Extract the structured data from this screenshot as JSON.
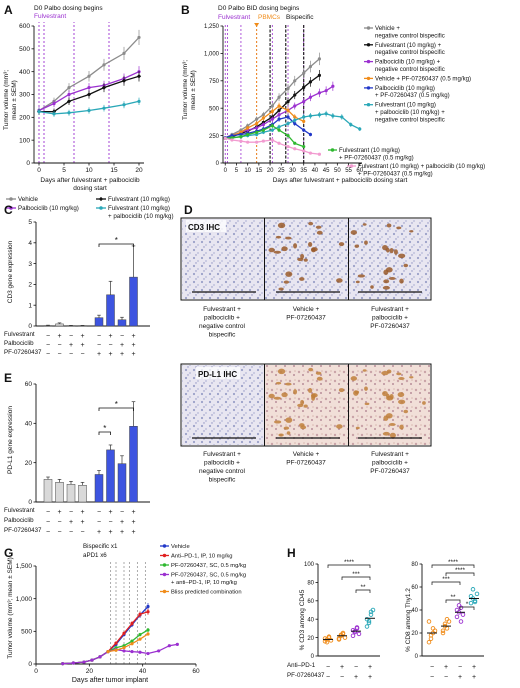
{
  "panels": {
    "A": {
      "letter": "A",
      "header1": "D0 Palbo dosing begins",
      "header2": "Fulvestrant",
      "ylabel": [
        "Tumor volume (mm³;",
        "mean ± SEM)"
      ],
      "xlabel": [
        "Days after fulvestrant + palbociclib",
        "dosing start"
      ],
      "legend": [
        "Vehicle",
        "Palbociclib (10 mg/kg)",
        "Fulvestrant (10 mg/kg)",
        "Fulvestrant (10 mg/kg)",
        "+ palbociclib (10 mg/kg)"
      ]
    },
    "B": {
      "letter": "B",
      "header1": "D0 Palbo BID dosing begins",
      "header_fulv": "Fulvestrant",
      "header_pbmc": "PBMCs",
      "header_bisp": "Bispecific",
      "ylabel": [
        "Tumor volume (mm³;",
        "mean ± SEM)"
      ],
      "xlabel": "Days after fulvestrant + palbociclib dosing start",
      "legend": [
        "Vehicle +",
        "negative control bispecific",
        "Fulvestrant (10 mg/kg) +",
        "negative control bispecific",
        "Palbociclib (10 mg/kg) +",
        "negative control bispecific",
        "Vehicle + PF-07260437 (0.5 mg/kg)",
        "Palbociclib (10 mg/kg)",
        "+ PF-07260437 (0.5 mg/kg)",
        "Fulvestrant (10 mg/kg)",
        "+ palbociclib (10 mg/kg) +",
        "negative control bispecific",
        "Fulvestrant (10 mg/kg)",
        "+ PF-07260437 (0.5 mg/kg)",
        "Fulvestrant (10 mg/kg) + palbociclib (10 mg/kg)",
        "+ PF-07260437 (0.5 mg/kg)"
      ]
    },
    "C": {
      "letter": "C",
      "ylabel": "CD3 gene expression",
      "row_labels": [
        "Fulvestrant",
        "Palbociclib",
        "PF-07260437"
      ],
      "signs": [
        [
          "−",
          "+",
          "−",
          "+",
          "−",
          "+",
          "−",
          "+"
        ],
        [
          "−",
          "−",
          "+",
          "+",
          "−",
          "−",
          "+",
          "+"
        ],
        [
          "−",
          "−",
          "−",
          "−",
          "+",
          "+",
          "+",
          "+"
        ]
      ],
      "sig": "*"
    },
    "D": {
      "letter": "D",
      "title": "CD3 IHC",
      "captions": [
        [
          "Fulvestrant +",
          "palbociclib +",
          "negative control",
          "bispecific"
        ],
        [
          "Vehicle +",
          "PF-07260437"
        ],
        [
          "Fulvestrant +",
          "palbociclib +",
          "PF-07260437"
        ]
      ]
    },
    "E": {
      "letter": "E",
      "ylabel": "PD-L1 gene expression",
      "row_labels": [
        "Fulvestrant",
        "Palbociclib",
        "PF-07260437"
      ],
      "signs": [
        [
          "−",
          "+",
          "−",
          "+",
          "−",
          "+",
          "−",
          "+"
        ],
        [
          "−",
          "−",
          "+",
          "+",
          "−",
          "−",
          "+",
          "+"
        ],
        [
          "−",
          "−",
          "−",
          "−",
          "+",
          "+",
          "+",
          "+"
        ]
      ],
      "sig": "*"
    },
    "F": {
      "letter": "F",
      "title": "PD-L1 IHC",
      "captions": [
        [
          "Fulvestrant +",
          "palbociclib +",
          "negative control",
          "bispecific"
        ],
        [
          "Vehicle +",
          "PF-07260437"
        ],
        [
          "Fulvestrant +",
          "palbociclib +",
          "PF-07260437"
        ]
      ]
    },
    "G": {
      "letter": "G",
      "header1": "Bispecific x1",
      "header2": "aPD1 x6",
      "ylabel": [
        "Tumor volume (mm³; mean ± SEM)"
      ],
      "xlabel": "Days after tumor implant",
      "legend": [
        "Vehicle",
        "Anti–PD-1, IP, 10 mg/kg",
        "PF-07260437, SC, 0.5 mg/kg",
        "PF-07260437, SC, 0.5 mg/kg",
        "+ anti–PD-1, IP, 10 mg/kg",
        "Bliss predicted combination"
      ]
    },
    "H": {
      "letter": "H",
      "ylabel_left": "% CD3 among CD45",
      "ylabel_right": "% CD8 among Thy1.2",
      "row_labels": [
        "Anti–PD-1",
        "PF-07260437"
      ],
      "signs": [
        [
          "−",
          "+",
          "−",
          "+"
        ],
        [
          "−",
          "−",
          "+",
          "+"
        ]
      ],
      "sig_left": [
        "****",
        "***",
        "**"
      ],
      "sig_right": [
        "****",
        "****",
        "***",
        "**",
        "*"
      ]
    }
  },
  "chart_data": [
    {
      "panel": "A",
      "type": "line",
      "x": [
        0,
        3,
        6,
        10,
        13,
        17,
        20
      ],
      "xlim": [
        -1,
        21
      ],
      "ylim": [
        0,
        600
      ],
      "yticks": [
        0,
        100,
        200,
        300,
        400,
        500,
        600
      ],
      "xticks": [
        0,
        5,
        10,
        15,
        20
      ],
      "vlines": [
        0,
        1,
        7,
        14
      ],
      "series": [
        {
          "color": "#8c8c8c",
          "marker": "circle",
          "values": [
            230,
            270,
            330,
            380,
            430,
            480,
            550
          ]
        },
        {
          "color": "#9b30d0",
          "marker": "circle",
          "values": [
            230,
            260,
            300,
            330,
            340,
            370,
            400
          ]
        },
        {
          "color": "#111111",
          "marker": "diamond",
          "values": [
            225,
            225,
            270,
            300,
            330,
            360,
            380
          ]
        },
        {
          "color": "#2aa8b8",
          "marker": "circle",
          "values": [
            225,
            215,
            220,
            230,
            240,
            255,
            270
          ]
        }
      ]
    },
    {
      "panel": "B",
      "type": "line",
      "xlim": [
        -1,
        61
      ],
      "ylim": [
        0,
        1250
      ],
      "yticks": [
        0,
        250,
        500,
        750,
        1000,
        1250
      ],
      "xticks": [
        0,
        5,
        10,
        15,
        20,
        25,
        30,
        35,
        40,
        45,
        50,
        55,
        60
      ],
      "vlines_purple": [
        0,
        1,
        7,
        14,
        21,
        28,
        35
      ],
      "vline_orange": 14,
      "vlines_black": [
        20,
        27,
        35
      ],
      "series": [
        {
          "color": "#8c8c8c",
          "x": [
            0,
            3,
            7,
            10,
            14,
            17,
            21,
            24,
            28,
            31,
            35,
            38,
            42
          ],
          "values": [
            230,
            260,
            300,
            340,
            400,
            440,
            520,
            600,
            680,
            750,
            820,
            880,
            950
          ]
        },
        {
          "color": "#111111",
          "x": [
            0,
            3,
            7,
            10,
            14,
            17,
            21,
            24,
            28,
            31,
            35,
            38,
            42
          ],
          "values": [
            225,
            240,
            270,
            290,
            330,
            370,
            420,
            480,
            560,
            620,
            690,
            740,
            800
          ]
        },
        {
          "color": "#9b30d0",
          "x": [
            0,
            3,
            7,
            10,
            14,
            17,
            21,
            24,
            28,
            31,
            35,
            38,
            42,
            45,
            48
          ],
          "values": [
            230,
            250,
            280,
            300,
            320,
            350,
            400,
            440,
            480,
            520,
            560,
            600,
            640,
            660,
            700
          ]
        },
        {
          "color": "#f08c1a",
          "x": [
            0,
            3,
            7,
            10,
            14,
            17,
            21,
            24,
            28,
            31,
            35
          ],
          "values": [
            225,
            250,
            280,
            320,
            360,
            410,
            470,
            520,
            480,
            420,
            380
          ]
        },
        {
          "color": "#2238c8",
          "x": [
            0,
            3,
            7,
            10,
            14,
            17,
            21,
            24,
            28,
            31,
            35,
            38
          ],
          "values": [
            230,
            250,
            260,
            270,
            290,
            310,
            350,
            400,
            420,
            360,
            300,
            260
          ]
        },
        {
          "color": "#2aa8b8",
          "x": [
            0,
            3,
            7,
            10,
            14,
            17,
            21,
            24,
            28,
            31,
            35,
            38,
            42,
            45,
            48,
            52,
            56,
            60
          ],
          "values": [
            225,
            230,
            240,
            250,
            260,
            280,
            300,
            330,
            360,
            390,
            420,
            430,
            440,
            450,
            430,
            420,
            350,
            310
          ]
        },
        {
          "color": "#2fb830",
          "x": [
            0,
            3,
            7,
            10,
            14,
            17,
            21,
            24,
            28,
            31,
            35
          ],
          "values": [
            225,
            230,
            240,
            260,
            280,
            300,
            340,
            300,
            250,
            180,
            150
          ]
        },
        {
          "color": "#f29bd0",
          "x": [
            0,
            3,
            7,
            10,
            14,
            17,
            21,
            24,
            28,
            31,
            35,
            38,
            42
          ],
          "values": [
            225,
            210,
            200,
            190,
            190,
            200,
            210,
            180,
            150,
            130,
            110,
            90,
            80
          ]
        }
      ]
    },
    {
      "panel": "C",
      "type": "bar",
      "ylim": [
        0,
        5
      ],
      "yticks": [
        0,
        1,
        2,
        3,
        4,
        5
      ],
      "groups": [
        {
          "color": "#d9d9d9",
          "values": [
            0.02,
            0.1,
            0.02,
            0.02
          ],
          "errors": [
            0.02,
            0.05,
            0.01,
            0.01
          ]
        },
        {
          "color": "#3d54e0",
          "values": [
            0.4,
            1.5,
            0.3,
            2.35
          ],
          "errors": [
            0.12,
            0.65,
            0.12,
            1.5
          ]
        }
      ]
    },
    {
      "panel": "E",
      "type": "bar",
      "ylim": [
        0,
        60
      ],
      "yticks": [
        0,
        20,
        40,
        60
      ],
      "groups": [
        {
          "color": "#d9d9d9",
          "values": [
            11.5,
            10,
            9,
            8.5
          ],
          "errors": [
            1.2,
            1.5,
            1.5,
            1.5
          ]
        },
        {
          "color": "#3d54e0",
          "values": [
            14,
            26.5,
            19.5,
            38.5
          ],
          "errors": [
            2,
            2.5,
            4,
            12.5
          ]
        }
      ]
    },
    {
      "panel": "G",
      "type": "line",
      "xlim": [
        0,
        60
      ],
      "ylim": [
        0,
        1500
      ],
      "yticks": [
        0,
        500,
        1000,
        1500
      ],
      "xticks": [
        0,
        20,
        40,
        60
      ],
      "vlines": [
        28,
        30,
        33,
        35,
        38,
        41
      ],
      "series": [
        {
          "color": "#2238c8",
          "x": [
            10,
            14,
            18,
            21,
            24,
            27,
            30,
            33,
            36,
            39,
            42
          ],
          "values": [
            5,
            15,
            30,
            60,
            110,
            190,
            300,
            450,
            600,
            750,
            880
          ]
        },
        {
          "color": "#e02020",
          "x": [
            10,
            14,
            18,
            21,
            24,
            27,
            30,
            33,
            36,
            39,
            42
          ],
          "values": [
            5,
            15,
            30,
            60,
            110,
            190,
            320,
            470,
            620,
            760,
            800
          ]
        },
        {
          "color": "#2fb830",
          "x": [
            10,
            14,
            18,
            21,
            24,
            27,
            30,
            33,
            36,
            39,
            42
          ],
          "values": [
            5,
            15,
            30,
            60,
            110,
            190,
            250,
            280,
            350,
            450,
            520
          ]
        },
        {
          "color": "#9b30d0",
          "x": [
            10,
            14,
            18,
            21,
            24,
            27,
            30,
            33,
            36,
            39,
            42,
            46,
            50,
            53
          ],
          "values": [
            5,
            15,
            30,
            60,
            110,
            190,
            220,
            200,
            190,
            180,
            160,
            200,
            280,
            300
          ]
        },
        {
          "color": "#f08c1a",
          "x": [
            27,
            30,
            33,
            36,
            39,
            42
          ],
          "values": [
            190,
            210,
            250,
            310,
            380,
            460
          ]
        }
      ]
    },
    {
      "panel": "H",
      "type": "scatter",
      "left": {
        "ylim": [
          0,
          100
        ],
        "yticks": [
          0,
          20,
          40,
          60,
          80,
          100
        ],
        "colors": [
          "#f08c1a",
          "#f08c1a",
          "#9b30d0",
          "#2aa8b8"
        ],
        "points": [
          [
            16,
            18,
            20,
            17,
            19,
            15,
            21
          ],
          [
            19,
            22,
            24,
            20,
            18,
            23,
            25
          ],
          [
            22,
            26,
            30,
            24,
            28,
            27,
            31
          ],
          [
            32,
            38,
            45,
            50,
            40,
            36,
            48
          ]
        ],
        "means": [
          18,
          22,
          27,
          41
        ]
      },
      "right": {
        "ylim": [
          0,
          80
        ],
        "yticks": [
          0,
          20,
          40,
          60,
          80
        ],
        "colors": [
          "#f08c1a",
          "#f08c1a",
          "#9b30d0",
          "#2aa8b8"
        ],
        "points": [
          [
            12,
            18,
            24,
            22,
            30,
            15,
            20
          ],
          [
            20,
            26,
            24,
            30,
            22,
            28,
            32
          ],
          [
            34,
            38,
            42,
            36,
            40,
            44,
            30
          ],
          [
            46,
            50,
            48,
            54,
            52,
            58,
            47
          ]
        ],
        "means": [
          20,
          26,
          38,
          50
        ]
      }
    }
  ]
}
